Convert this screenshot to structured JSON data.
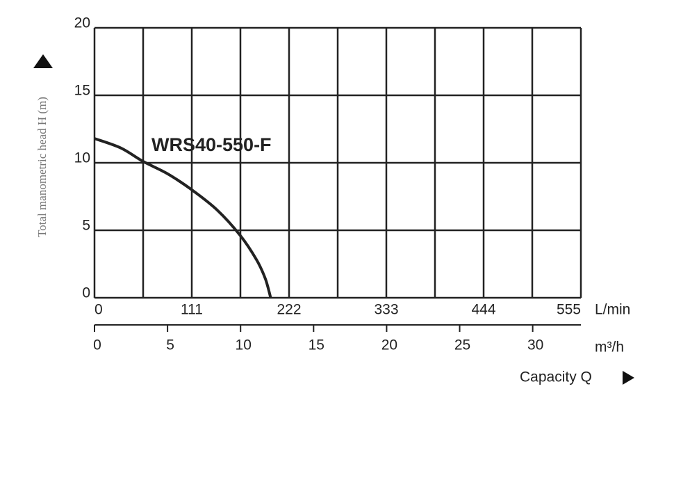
{
  "chart_data": {
    "type": "line",
    "y_label": "Total manometric head H (m)",
    "annotation": "WRS40-550-F",
    "x_unit": "L/min",
    "x2_unit": "m³/h",
    "x_title": "Capacity Q",
    "xlim": [
      0,
      555
    ],
    "xticks": [
      0,
      111,
      222,
      333,
      444,
      555
    ],
    "xgrid": [
      0,
      55.5,
      111,
      166.5,
      222,
      277.5,
      333,
      388.5,
      444,
      499.5,
      555
    ],
    "x2lim": [
      0,
      33.3
    ],
    "x2ticks": [
      0,
      5,
      10,
      15,
      20,
      25,
      30
    ],
    "ylim": [
      0,
      20
    ],
    "yticks": [
      0,
      5,
      10,
      15,
      20
    ],
    "grid": true,
    "series": [
      {
        "name": "WRS40-550-F",
        "color": "#222222",
        "x": [
          0,
          30,
          55.5,
          83,
          111,
          140,
          166.5,
          185,
          195,
          201
        ],
        "values": [
          11.8,
          11.1,
          10.1,
          9.2,
          8.0,
          6.5,
          4.6,
          2.8,
          1.4,
          0
        ]
      }
    ]
  }
}
